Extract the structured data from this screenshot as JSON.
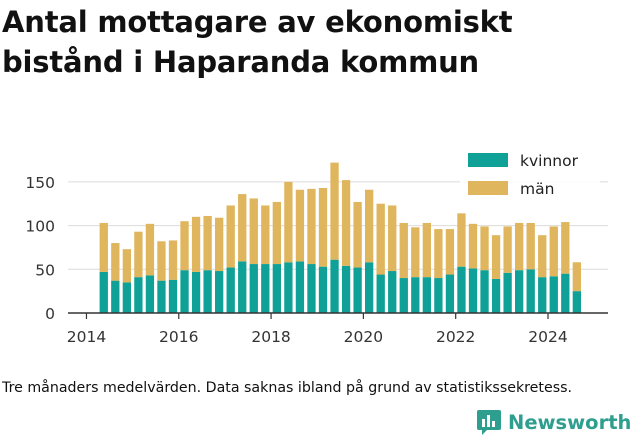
{
  "title": "Antal mottagare av ekonomiskt bistånd i Haparanda kommun",
  "caption": "Tre månaders medelvärden. Data saknas ibland på grund av statistikssekretess.",
  "brand": {
    "name": "Newsworthy",
    "icon": "newsworthy-logo-icon",
    "color": "#2e9e8f"
  },
  "chart_data": {
    "type": "bar",
    "stacked": true,
    "xlim": [
      2013.6,
      2025.3
    ],
    "ylim": [
      0,
      175
    ],
    "x_ticks": [
      2014,
      2016,
      2018,
      2020,
      2022,
      2024
    ],
    "y_ticks": [
      0,
      50,
      100,
      150
    ],
    "grid": "horizontal",
    "legend_position": "top-right",
    "x": [
      2014.375,
      2014.625,
      2014.875,
      2015.125,
      2015.375,
      2015.625,
      2015.875,
      2016.125,
      2016.375,
      2016.625,
      2016.875,
      2017.125,
      2017.375,
      2017.625,
      2017.875,
      2018.125,
      2018.375,
      2018.625,
      2018.875,
      2019.125,
      2019.375,
      2019.625,
      2019.875,
      2020.125,
      2020.375,
      2020.625,
      2020.875,
      2021.125,
      2021.375,
      2021.625,
      2021.875,
      2022.125,
      2022.375,
      2022.625,
      2022.875,
      2023.125,
      2023.375,
      2023.625,
      2023.875,
      2024.125,
      2024.375,
      2024.625
    ],
    "series": [
      {
        "name": "kvinnor",
        "color": "#0fa197",
        "values": [
          47,
          37,
          35,
          41,
          43,
          37,
          38,
          49,
          47,
          49,
          48,
          52,
          59,
          56,
          56,
          56,
          58,
          59,
          56,
          53,
          61,
          54,
          52,
          58,
          44,
          48,
          40,
          41,
          41,
          40,
          44,
          53,
          51,
          49,
          39,
          46,
          49,
          50,
          41,
          42,
          45,
          25
        ]
      },
      {
        "name": "män",
        "color": "#dfb55d",
        "values": [
          56,
          43,
          38,
          52,
          59,
          45,
          45,
          56,
          63,
          62,
          61,
          71,
          77,
          75,
          67,
          71,
          92,
          82,
          86,
          90,
          111,
          98,
          75,
          83,
          81,
          75,
          63,
          57,
          62,
          56,
          52,
          61,
          51,
          50,
          50,
          53,
          54,
          53,
          48,
          57,
          59,
          33
        ]
      }
    ]
  }
}
